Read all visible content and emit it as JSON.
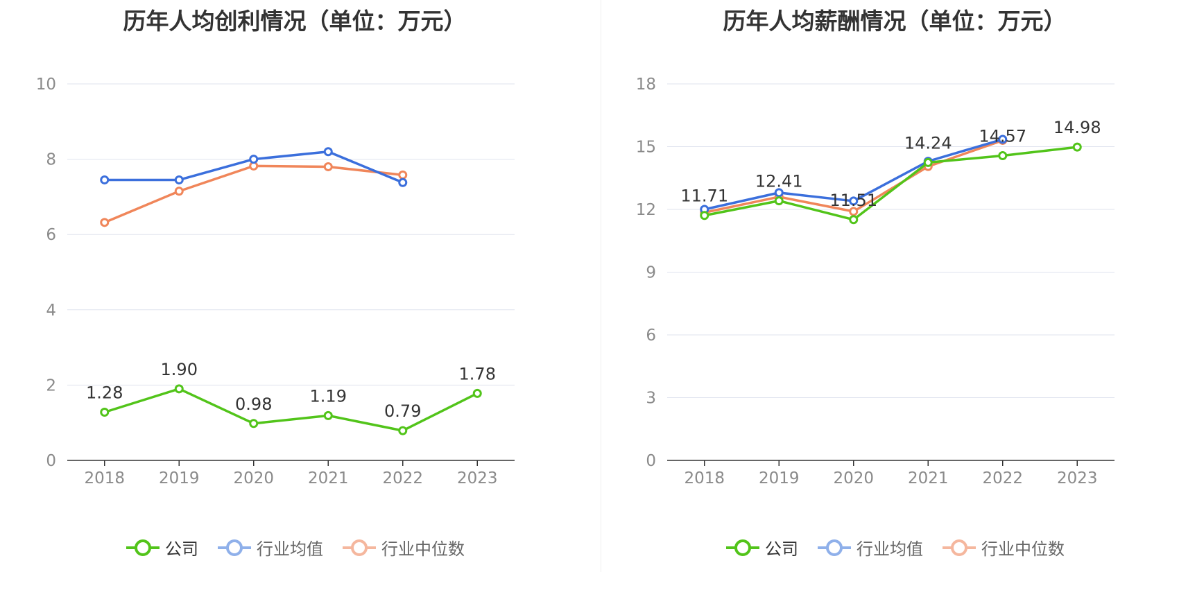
{
  "charts": [
    {
      "title": "历年人均创利情况（单位：万元）",
      "legend": [
        "公司",
        "行业均值",
        "行业中位数"
      ]
    },
    {
      "title": "历年人均薪酬情况（单位：万元）",
      "legend": [
        "公司",
        "行业均值",
        "行业中位数"
      ]
    }
  ],
  "colors": {
    "company": "#52c41a",
    "industry_avg": "#3b6fdc",
    "industry_median": "#f0865a",
    "legend_avg": "#8fb0ea",
    "legend_median": "#f5b79e",
    "grid": "#dfe3ee",
    "axis": "#333333"
  },
  "chart_data": [
    {
      "type": "line",
      "title": "历年人均创利情况（单位：万元）",
      "categories": [
        "2018",
        "2019",
        "2020",
        "2021",
        "2022",
        "2023"
      ],
      "ylim": [
        0,
        10
      ],
      "yticks": [
        0,
        2,
        4,
        6,
        8,
        10
      ],
      "grid": true,
      "legend_position": "bottom",
      "series": [
        {
          "name": "公司",
          "values": [
            1.28,
            1.9,
            0.98,
            1.19,
            0.79,
            1.78
          ],
          "labels": [
            "1.28",
            "1.90",
            "0.98",
            "1.19",
            "0.79",
            "1.78"
          ]
        },
        {
          "name": "行业均值",
          "values": [
            7.45,
            7.45,
            8.0,
            8.2,
            7.38,
            null
          ]
        },
        {
          "name": "行业中位数",
          "values": [
            6.32,
            7.15,
            7.82,
            7.8,
            7.58,
            null
          ]
        }
      ]
    },
    {
      "type": "line",
      "title": "历年人均薪酬情况（单位：万元）",
      "categories": [
        "2018",
        "2019",
        "2020",
        "2021",
        "2022",
        "2023"
      ],
      "ylim": [
        0,
        18
      ],
      "yticks": [
        0,
        3,
        6,
        9,
        12,
        15,
        18
      ],
      "grid": true,
      "legend_position": "bottom",
      "series": [
        {
          "name": "公司",
          "values": [
            11.71,
            12.41,
            11.51,
            14.24,
            14.57,
            14.98
          ],
          "labels": [
            "11.71",
            "12.41",
            "11.51",
            "14.24",
            "14.57",
            "14.98"
          ]
        },
        {
          "name": "行业均值",
          "values": [
            12.0,
            12.8,
            12.4,
            14.3,
            15.35,
            null
          ]
        },
        {
          "name": "行业中位数",
          "values": [
            11.85,
            12.6,
            11.9,
            14.05,
            15.3,
            null
          ]
        }
      ]
    }
  ]
}
